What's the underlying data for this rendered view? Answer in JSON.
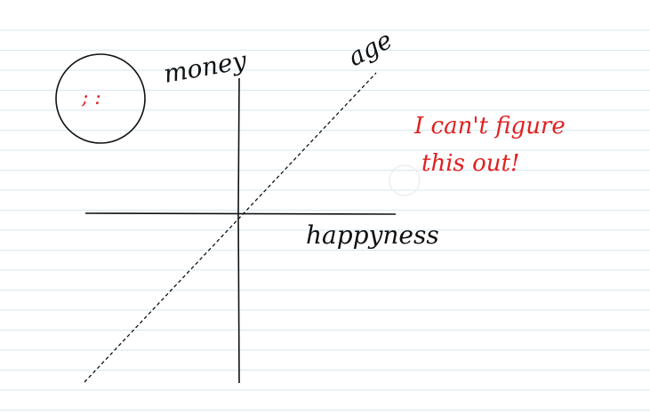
{
  "canvas": {
    "ruled_line_color": "#d6e7f1"
  },
  "ink_colors": {
    "black": "#111111",
    "red": "#e02020"
  },
  "labels": {
    "y_axis": "money",
    "diagonal": "age",
    "x_axis": "happyness",
    "note_line1": "I can't figure",
    "note_line2": "this out!"
  },
  "face_marks": "; :"
}
